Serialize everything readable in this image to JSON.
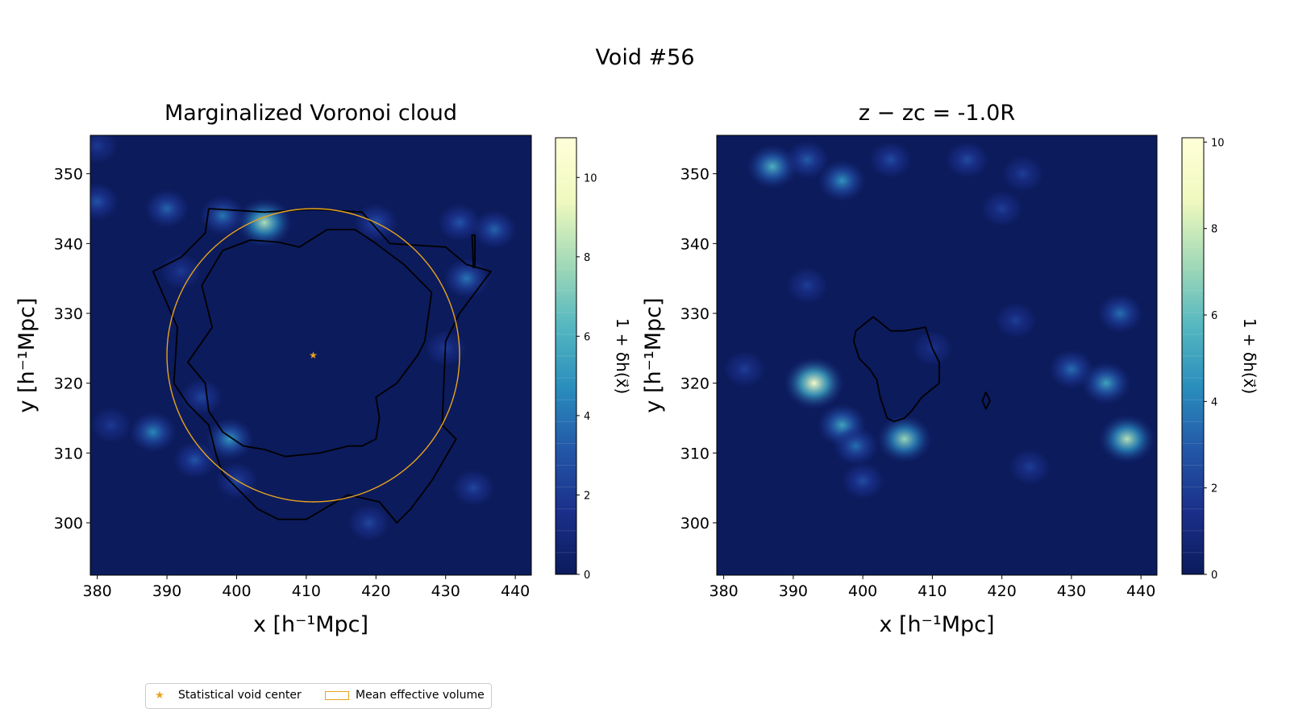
{
  "figure": {
    "suptitle": "Void #56"
  },
  "legend": {
    "center_label": "Statistical void center",
    "volume_label": "Mean effective volume"
  },
  "colors": {
    "void_center": "#e8a31e",
    "effective_volume": "#e8a31e",
    "contour": "#000000",
    "colormap": [
      "#0c1b5c",
      "#1a2f8a",
      "#2357a8",
      "#2a8ebd",
      "#56b8c0",
      "#a4dab7",
      "#f0f9be",
      "#ffffd9"
    ]
  },
  "chart_data": [
    {
      "type": "heatmap",
      "title": "Marginalized Voronoi cloud",
      "xlabel": "x [h⁻¹Mpc]",
      "ylabel": "y [h⁻¹Mpc]",
      "xlim": [
        379,
        442.3
      ],
      "ylim": [
        292.5,
        355.5
      ],
      "xticks": [
        380,
        390,
        400,
        410,
        420,
        430,
        440
      ],
      "yticks": [
        300,
        310,
        320,
        330,
        340,
        350
      ],
      "colorbar": {
        "label": "1 + δh(x⃗)",
        "vmin": 0,
        "vmax": 11,
        "ticks": [
          0,
          2,
          4,
          6,
          8,
          10
        ]
      },
      "void_center": {
        "x": 411,
        "y": 324
      },
      "effective_radius": 21,
      "density_peaks": [
        {
          "x": 404,
          "y": 343,
          "value": 8
        },
        {
          "x": 398,
          "y": 344,
          "value": 4
        },
        {
          "x": 390,
          "y": 345,
          "value": 3.5
        },
        {
          "x": 380,
          "y": 346,
          "value": 3
        },
        {
          "x": 420,
          "y": 343,
          "value": 3
        },
        {
          "x": 432,
          "y": 343,
          "value": 3
        },
        {
          "x": 437,
          "y": 342,
          "value": 3.5
        },
        {
          "x": 433,
          "y": 335,
          "value": 4
        },
        {
          "x": 399,
          "y": 312,
          "value": 5
        },
        {
          "x": 395,
          "y": 318,
          "value": 2.5
        },
        {
          "x": 394,
          "y": 309,
          "value": 3
        },
        {
          "x": 388,
          "y": 313,
          "value": 4.5
        },
        {
          "x": 382,
          "y": 314,
          "value": 2
        },
        {
          "x": 400,
          "y": 306,
          "value": 2.5
        },
        {
          "x": 419,
          "y": 300,
          "value": 2.5
        },
        {
          "x": 434,
          "y": 305,
          "value": 2.5
        },
        {
          "x": 380,
          "y": 354,
          "value": 2
        },
        {
          "x": 392,
          "y": 336,
          "value": 2
        },
        {
          "x": 430,
          "y": 325,
          "value": 2
        }
      ],
      "contours": [
        {
          "name": "outer",
          "points": [
            [
              396,
              345
            ],
            [
              404,
              344.5
            ],
            [
              411,
              344.9
            ],
            [
              418,
              344.5
            ],
            [
              422,
              340
            ],
            [
              430,
              339.5
            ],
            [
              433,
              337
            ],
            [
              436.5,
              336
            ],
            [
              432,
              330
            ],
            [
              430,
              326
            ],
            [
              429.5,
              314
            ],
            [
              431.5,
              312
            ],
            [
              428,
              306
            ],
            [
              425,
              302
            ],
            [
              423,
              300
            ],
            [
              420.5,
              303
            ],
            [
              416,
              304
            ],
            [
              410,
              300.5
            ],
            [
              406,
              300.5
            ],
            [
              403,
              302
            ],
            [
              398,
              307
            ],
            [
              397,
              310
            ],
            [
              396,
              314
            ],
            [
              393,
              317
            ],
            [
              391,
              320
            ],
            [
              391.5,
              328
            ],
            [
              388,
              336
            ],
            [
              392,
              338
            ],
            [
              395.5,
              341.5
            ],
            [
              396,
              345
            ]
          ]
        },
        {
          "name": "inner",
          "points": [
            [
              398,
              339
            ],
            [
              402,
              340.5
            ],
            [
              406,
              340.2
            ],
            [
              409,
              339.5
            ],
            [
              413,
              342
            ],
            [
              417,
              342
            ],
            [
              420,
              340
            ],
            [
              424,
              337
            ],
            [
              428,
              333
            ],
            [
              427,
              326
            ],
            [
              426,
              324
            ],
            [
              423,
              320
            ],
            [
              420,
              318
            ],
            [
              420.5,
              315
            ],
            [
              420,
              312
            ],
            [
              418,
              311
            ],
            [
              416,
              311
            ],
            [
              412,
              310
            ],
            [
              407,
              309.5
            ],
            [
              404,
              310.5
            ],
            [
              401,
              311
            ],
            [
              398,
              313
            ],
            [
              396,
              316
            ],
            [
              395.5,
              320
            ],
            [
              393,
              323
            ],
            [
              396.5,
              328
            ],
            [
              395,
              334
            ],
            [
              398,
              339
            ]
          ]
        },
        {
          "name": "spike",
          "points": [
            [
              434,
              336.5
            ],
            [
              433.8,
              341.2
            ],
            [
              434.2,
              341.2
            ],
            [
              434.2,
              336.5
            ]
          ]
        }
      ]
    },
    {
      "type": "heatmap",
      "title": "z − zc = -1.0R",
      "xlabel": "x [h⁻¹Mpc]",
      "ylabel": "y [h⁻¹Mpc]",
      "xlim": [
        379,
        442.3
      ],
      "ylim": [
        292.5,
        355.5
      ],
      "xticks": [
        380,
        390,
        400,
        410,
        420,
        430,
        440
      ],
      "yticks": [
        300,
        310,
        320,
        330,
        340,
        350
      ],
      "colorbar": {
        "label": "1 + δh(x⃗)",
        "vmin": 0,
        "vmax": 10.1,
        "ticks": [
          0,
          2,
          4,
          6,
          8,
          10
        ]
      },
      "density_peaks": [
        {
          "x": 387,
          "y": 351,
          "value": 5.5
        },
        {
          "x": 392,
          "y": 352,
          "value": 3
        },
        {
          "x": 397,
          "y": 349,
          "value": 4.5
        },
        {
          "x": 404,
          "y": 352,
          "value": 2.5
        },
        {
          "x": 415,
          "y": 352,
          "value": 2.5
        },
        {
          "x": 423,
          "y": 350,
          "value": 2
        },
        {
          "x": 393,
          "y": 320,
          "value": 9
        },
        {
          "x": 397,
          "y": 314,
          "value": 5
        },
        {
          "x": 399,
          "y": 311,
          "value": 3.5
        },
        {
          "x": 406,
          "y": 312,
          "value": 7
        },
        {
          "x": 400,
          "y": 306,
          "value": 2.5
        },
        {
          "x": 438,
          "y": 312,
          "value": 7.5
        },
        {
          "x": 435,
          "y": 320,
          "value": 5
        },
        {
          "x": 430,
          "y": 322,
          "value": 3.5
        },
        {
          "x": 437,
          "y": 330,
          "value": 3.5
        },
        {
          "x": 422,
          "y": 329,
          "value": 2
        },
        {
          "x": 383,
          "y": 322,
          "value": 2
        },
        {
          "x": 392,
          "y": 334,
          "value": 2
        },
        {
          "x": 424,
          "y": 308,
          "value": 2
        },
        {
          "x": 410,
          "y": 325,
          "value": 1.6
        },
        {
          "x": 420,
          "y": 345,
          "value": 2
        }
      ],
      "contours": [
        {
          "name": "blob",
          "points": [
            [
              399,
              327.5
            ],
            [
              401.5,
              329.5
            ],
            [
              404,
              327.5
            ],
            [
              406,
              327.5
            ],
            [
              409,
              328
            ],
            [
              410,
              325
            ],
            [
              411,
              323
            ],
            [
              411,
              320
            ],
            [
              408.5,
              318
            ],
            [
              407,
              316
            ],
            [
              406,
              315
            ],
            [
              404.5,
              314.5
            ],
            [
              403.5,
              315
            ],
            [
              402.5,
              318
            ],
            [
              402,
              320.5
            ],
            [
              401,
              322
            ],
            [
              399.5,
              323.5
            ],
            [
              398.7,
              326
            ],
            [
              399,
              327.5
            ]
          ]
        },
        {
          "name": "small",
          "points": [
            [
              417.2,
              317.5
            ],
            [
              417.7,
              318.7
            ],
            [
              418.3,
              317.5
            ],
            [
              417.7,
              316.3
            ],
            [
              417.2,
              317.5
            ]
          ]
        }
      ]
    }
  ]
}
